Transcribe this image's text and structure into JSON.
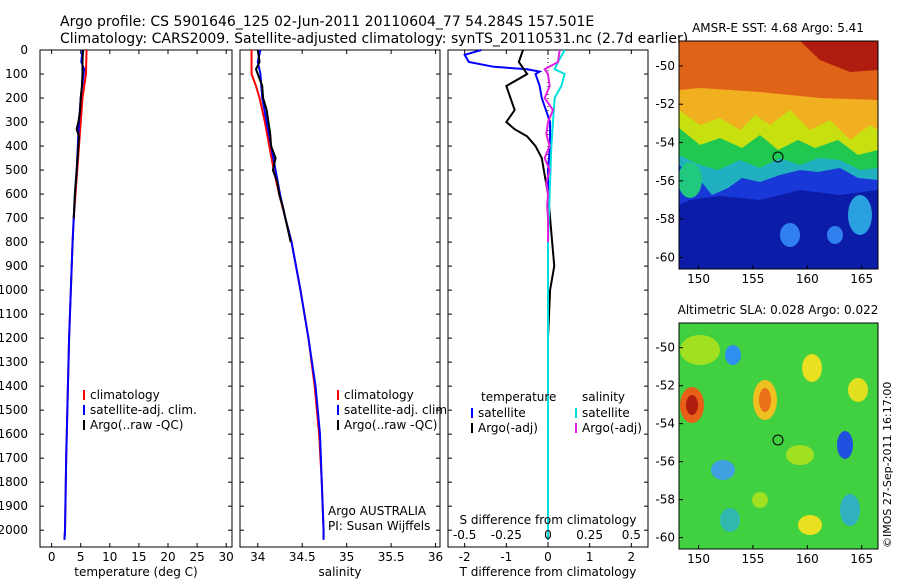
{
  "header": {
    "line1": "Argo profile: CS 5901646_125 02-Jun-2011 20110604_77 54.284S 157.501E",
    "line2": "Climatology: CARS2009. Satellite-adjusted climatology: synTS_20110531.nc (2.7d earlier)"
  },
  "colors": {
    "climatology": "#ff0000",
    "satellite": "#0000ff",
    "argo": "#000000",
    "sal_satellite": "#00e0e0",
    "sal_argo": "#e020e0"
  },
  "depth_ticks": [
    0,
    100,
    200,
    300,
    400,
    500,
    600,
    700,
    800,
    900,
    1000,
    1100,
    1200,
    1300,
    1400,
    1500,
    1600,
    1700,
    1800,
    1900,
    2000
  ],
  "chart_data": [
    {
      "type": "line",
      "xlabel": "temperature (deg C)",
      "xlim": [
        -2,
        31
      ],
      "ylim": [
        2070,
        0
      ],
      "xticks": [
        0,
        5,
        10,
        15,
        20,
        25,
        30
      ],
      "xtick_labels": [
        "0",
        "5",
        "10",
        "15",
        "20",
        "25",
        "30"
      ],
      "legend": [
        "climatology",
        "satellite-adj. clim.",
        "Argo(..raw -QC)"
      ],
      "series": [
        {
          "name": "climatology",
          "color": "#ff0000",
          "depth": [
            0,
            100,
            150,
            200,
            300,
            400,
            500,
            600,
            700,
            800,
            1000,
            1200,
            1500,
            1700,
            2000,
            2040
          ],
          "values": [
            6.0,
            5.9,
            5.6,
            5.3,
            5.0,
            4.7,
            4.4,
            4.1,
            3.8,
            3.6,
            3.3,
            3.0,
            2.7,
            2.5,
            2.3,
            2.2
          ]
        },
        {
          "name": "satellite-adj. clim.",
          "color": "#0000ff",
          "depth": [
            0,
            50,
            80,
            100,
            200,
            300,
            400,
            500,
            600,
            700,
            800,
            1000,
            1200,
            1500,
            1700,
            2000,
            2040
          ],
          "values": [
            5.3,
            5.1,
            5.6,
            5.5,
            5.0,
            4.7,
            4.5,
            4.3,
            4.0,
            3.8,
            3.6,
            3.3,
            3.0,
            2.7,
            2.5,
            2.3,
            2.2
          ]
        },
        {
          "name": "Argo(..raw -QC)",
          "color": "#000000",
          "depth": [
            0,
            50,
            100,
            150,
            200,
            250,
            300,
            330,
            360,
            400,
            500,
            600,
            700
          ],
          "values": [
            5.4,
            5.3,
            5.3,
            5.2,
            5.0,
            4.9,
            4.6,
            4.3,
            4.7,
            4.6,
            4.3,
            4.0,
            3.8
          ]
        }
      ]
    },
    {
      "type": "line",
      "xlabel": "salinity",
      "xlim": [
        33.8,
        36.05
      ],
      "ylim": [
        2070,
        0
      ],
      "xticks": [
        34,
        34.5,
        35,
        35.5,
        36
      ],
      "xtick_labels": [
        "34",
        "34.5",
        "35",
        "35.5",
        "36"
      ],
      "legend": [
        "climatology",
        "satellite-adj. clim.",
        "Argo(..raw -QC)"
      ],
      "annotations": [
        "Argo AUSTRALIA",
        "PI: Susan Wijffels"
      ],
      "series": [
        {
          "name": "climatology",
          "color": "#ff0000",
          "depth": [
            0,
            100,
            150,
            200,
            300,
            400,
            500,
            600,
            700,
            800,
            1000,
            1200,
            1400,
            1600,
            1800,
            2000,
            2040
          ],
          "values": [
            33.93,
            33.93,
            33.98,
            34.02,
            34.08,
            34.13,
            34.18,
            34.24,
            34.31,
            34.38,
            34.48,
            34.57,
            34.64,
            34.69,
            34.72,
            34.74,
            34.74
          ]
        },
        {
          "name": "satellite-adj. clim.",
          "color": "#0000ff",
          "depth": [
            0,
            50,
            100,
            200,
            300,
            400,
            500,
            600,
            700,
            800,
            1000,
            1200,
            1400,
            1600,
            1800,
            2000,
            2040
          ],
          "values": [
            34.03,
            34.0,
            34.03,
            34.05,
            34.1,
            34.15,
            34.2,
            34.25,
            34.31,
            34.38,
            34.48,
            34.57,
            34.65,
            34.7,
            34.72,
            34.74,
            34.74
          ]
        },
        {
          "name": "Argo(..raw -QC)",
          "color": "#000000",
          "depth": [
            0,
            50,
            80,
            100,
            150,
            200,
            250,
            300,
            350,
            400,
            450,
            500,
            550,
            600,
            650,
            700,
            750,
            800
          ],
          "values": [
            34.0,
            34.02,
            33.98,
            34.0,
            34.05,
            34.06,
            34.1,
            34.12,
            34.14,
            34.15,
            34.2,
            34.17,
            34.22,
            34.24,
            34.28,
            34.31,
            34.34,
            34.37
          ]
        }
      ]
    },
    {
      "type": "line",
      "xlabel": "T difference from climatology",
      "top_label": "S difference from climatology",
      "xlim": [
        -2.4,
        2.4
      ],
      "ylim": [
        2070,
        0
      ],
      "xticks": [
        -2,
        -1,
        0,
        1,
        2
      ],
      "xtick_labels": [
        "-2",
        "-1",
        "0",
        "1",
        "2"
      ],
      "top_ticks": [
        -0.5,
        -0.25,
        0,
        0.25,
        0.5
      ],
      "top_tick_labels": [
        "-0.5",
        "-0.25",
        "0",
        "0.25",
        "0.5"
      ],
      "legend_groups": [
        {
          "title": "temperature",
          "items": [
            "satellite",
            "Argo(-adj)"
          ]
        },
        {
          "title": "salinity",
          "items": [
            "satellite",
            "Argo(-adj)"
          ]
        }
      ],
      "series": [
        {
          "name": "temperature satellite",
          "color": "#0000ff",
          "depth": [
            0,
            20,
            50,
            70,
            80,
            90,
            100,
            150,
            200,
            250,
            300,
            350,
            400,
            500,
            600,
            700,
            800,
            1000,
            1200,
            1500,
            1700,
            2000,
            2040
          ],
          "values": [
            -1.6,
            -2.0,
            -1.9,
            -1.3,
            -0.5,
            -0.2,
            -0.3,
            -0.2,
            -0.15,
            -0.05,
            0.05,
            0.05,
            0.05,
            0.0,
            0.0,
            0.0,
            0.0,
            0.0,
            0.0,
            0.0,
            0.0,
            0.0,
            0.0
          ]
        },
        {
          "name": "temperature Argo(-adj)",
          "color": "#000000",
          "depth": [
            0,
            50,
            100,
            150,
            200,
            250,
            300,
            330,
            360,
            400,
            450,
            500,
            600,
            700,
            800,
            900,
            1000,
            1200,
            1500,
            1800,
            2000,
            2040
          ],
          "values": [
            -0.6,
            -0.7,
            -0.5,
            -1.0,
            -0.9,
            -0.8,
            -1.0,
            -0.8,
            -0.5,
            -0.3,
            -0.15,
            -0.1,
            0.0,
            0.05,
            0.1,
            0.15,
            0.05,
            0.0,
            0.0,
            0.0,
            0.0,
            0.0
          ]
        },
        {
          "name": "salinity satellite",
          "color": "#00e0e0",
          "depth": [
            0,
            50,
            80,
            100,
            150,
            200,
            300,
            400,
            500,
            600,
            700,
            800,
            1000,
            1200,
            1400,
            1600,
            1800,
            2000,
            2040
          ],
          "values": [
            0.1,
            0.06,
            0.04,
            0.1,
            0.08,
            0.04,
            0.03,
            0.02,
            0.015,
            0.01,
            0.005,
            0.0,
            0.0,
            0.0,
            0.0,
            0.0,
            0.0,
            0.0,
            0.0
          ]
        },
        {
          "name": "salinity Argo(-adj)",
          "color": "#e020e0",
          "depth": [
            0,
            50,
            80,
            100,
            150,
            200,
            250,
            300,
            350,
            400,
            450,
            500,
            550,
            600,
            650,
            700,
            750,
            800
          ],
          "values": [
            0.07,
            0.06,
            -0.02,
            0.0,
            0.01,
            -0.02,
            0.03,
            0.0,
            -0.01,
            0.01,
            -0.02,
            0.01,
            -0.01,
            0.0,
            -0.005,
            0.0,
            0.0,
            0.0
          ]
        }
      ]
    },
    {
      "type": "heatmap",
      "title": "AMSR-E SST: 4.68 Argo: 5.41",
      "xticks": [
        150,
        155,
        160,
        165
      ],
      "yticks": [
        -50,
        -52,
        -54,
        -56,
        -58,
        -60
      ],
      "marker_label": "Argo position",
      "marker": [
        157.5,
        -54.28
      ]
    },
    {
      "type": "heatmap",
      "title": "Altimetric SLA: 0.028 Argo: 0.022",
      "xticks": [
        150,
        155,
        160,
        165
      ],
      "yticks": [
        -50,
        -52,
        -54,
        -56,
        -58,
        -60
      ],
      "marker_label": "Argo position",
      "marker": [
        157.5,
        -54.28
      ]
    }
  ],
  "footer_credit": "©IMOS 27-Sep-2011 16:17:00"
}
